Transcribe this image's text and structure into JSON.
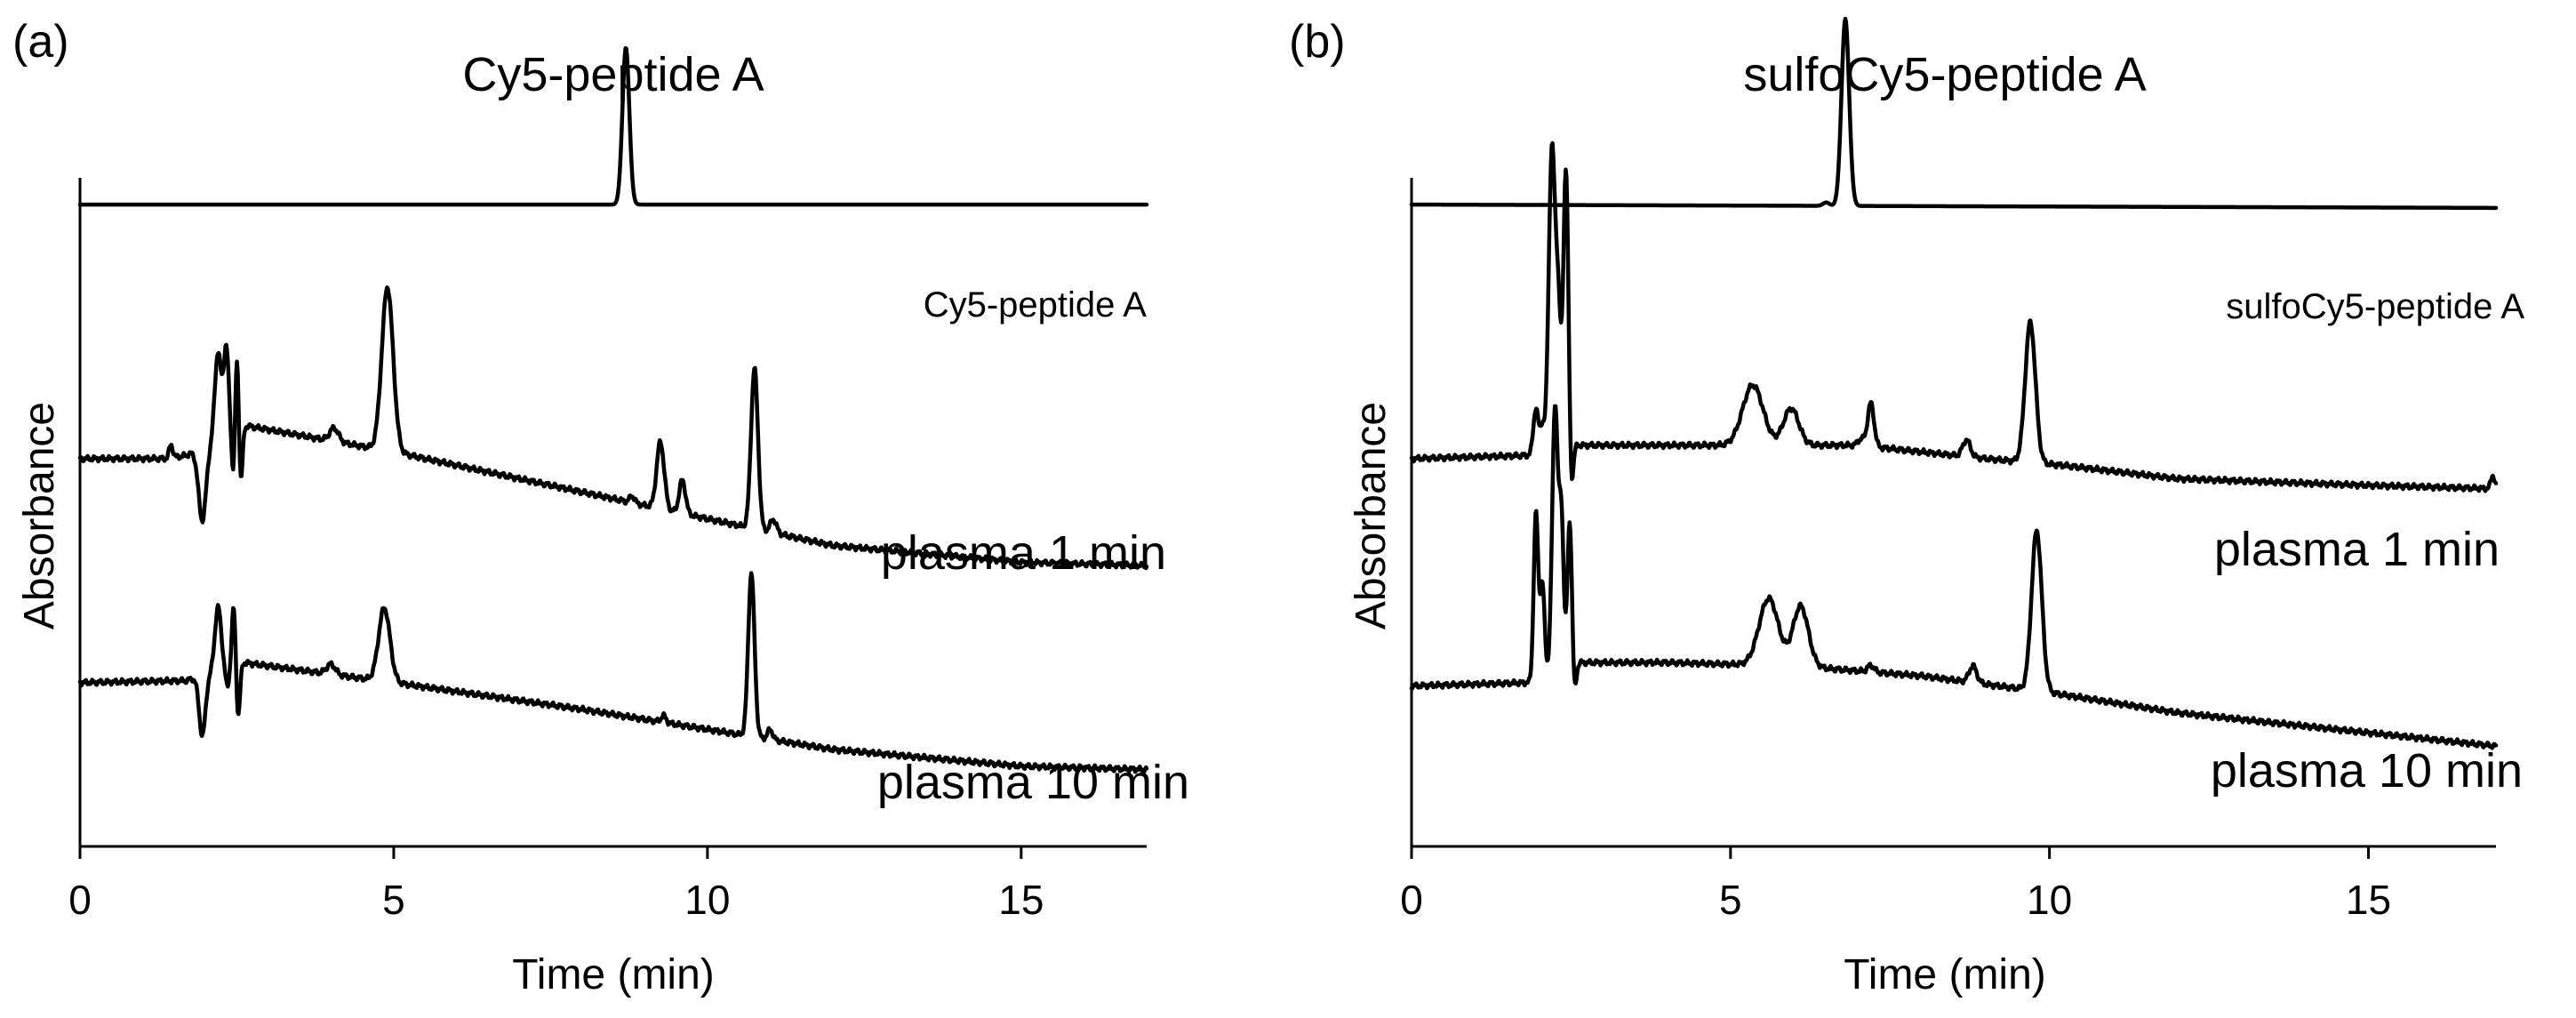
{
  "chart_data": [
    {
      "type": "line",
      "panel_label": "(a)",
      "title": "Cy5-peptide A",
      "xlabel": "Time (min)",
      "ylabel": "Absorbance",
      "xlim": [
        0,
        17
      ],
      "xticks": [
        0,
        5,
        10,
        15
      ],
      "series": [
        {
          "name": "Cy5-peptide A",
          "baseline": [
            [
              0,
              0.96
            ],
            [
              17,
              0.96
            ]
          ],
          "peaks": [
            [
              8.7,
              0.235,
              0.055
            ]
          ]
        },
        {
          "name": "plasma 1 min",
          "baseline": [
            [
              0,
              0.58
            ],
            [
              1.4,
              0.58
            ],
            [
              1.7,
              0.585
            ],
            [
              2.6,
              0.63
            ],
            [
              5,
              0.59
            ],
            [
              8,
              0.53
            ],
            [
              10,
              0.49
            ],
            [
              12,
              0.45
            ],
            [
              15,
              0.425
            ],
            [
              17,
              0.42
            ]
          ],
          "peaks": [
            [
              1.45,
              0.02,
              0.03
            ],
            [
              1.95,
              -0.11,
              0.06
            ],
            [
              2.2,
              0.13,
              0.05
            ],
            [
              2.33,
              0.13,
              0.04
            ],
            [
              2.45,
              -0.08,
              0.03
            ],
            [
              2.5,
              0.13,
              0.03
            ],
            [
              2.56,
              -0.09,
              0.03
            ],
            [
              4.05,
              0.02,
              0.07
            ],
            [
              4.9,
              0.245,
              0.09
            ],
            [
              8.8,
              0.01,
              0.04
            ],
            [
              9.25,
              0.1,
              0.06
            ],
            [
              9.6,
              0.05,
              0.05
            ],
            [
              10.75,
              0.24,
              0.055
            ],
            [
              11.05,
              0.02,
              0.05
            ]
          ]
        },
        {
          "name": "plasma 10 min",
          "baseline": [
            [
              0,
              0.245
            ],
            [
              1.7,
              0.248
            ],
            [
              2.6,
              0.275
            ],
            [
              5,
              0.245
            ],
            [
              8,
              0.205
            ],
            [
              10,
              0.175
            ],
            [
              12,
              0.145
            ],
            [
              15,
              0.12
            ],
            [
              17,
              0.115
            ]
          ],
          "peaks": [
            [
              1.95,
              -0.09,
              0.05
            ],
            [
              2.2,
              0.095,
              0.05
            ],
            [
              2.35,
              -0.03,
              0.03
            ],
            [
              2.45,
              0.09,
              0.03
            ],
            [
              2.52,
              -0.08,
              0.03
            ],
            [
              4.0,
              0.015,
              0.07
            ],
            [
              4.85,
              0.11,
              0.09
            ],
            [
              9.3,
              0.01,
              0.04
            ],
            [
              10.7,
              0.245,
              0.05
            ],
            [
              11.0,
              0.015,
              0.04
            ]
          ]
        }
      ]
    },
    {
      "type": "line",
      "panel_label": "(b)",
      "title": "sulfoCy5-peptide A",
      "xlabel": "Time (min)",
      "ylabel": "Absorbance",
      "xlim": [
        0,
        17
      ],
      "xticks": [
        0,
        5,
        10,
        15
      ],
      "series": [
        {
          "name": "sulfoCy5-peptide A",
          "baseline": [
            [
              0,
              0.96
            ],
            [
              17,
              0.955
            ]
          ],
          "peaks": [
            [
              6.5,
              0.005,
              0.05
            ],
            [
              6.8,
              0.28,
              0.06
            ]
          ]
        },
        {
          "name": "plasma 1 min",
          "baseline": [
            [
              0,
              0.58
            ],
            [
              1.9,
              0.585
            ],
            [
              2.6,
              0.6
            ],
            [
              4,
              0.6
            ],
            [
              5.5,
              0.6
            ],
            [
              7,
              0.6
            ],
            [
              9,
              0.58
            ],
            [
              10.2,
              0.57
            ],
            [
              12,
              0.55
            ],
            [
              15,
              0.54
            ],
            [
              17,
              0.535
            ]
          ],
          "peaks": [
            [
              1.95,
              0.07,
              0.04
            ],
            [
              2.05,
              0.04,
              0.03
            ],
            [
              2.2,
              0.45,
              0.05
            ],
            [
              2.3,
              0.2,
              0.04
            ],
            [
              2.42,
              0.42,
              0.04
            ],
            [
              2.5,
              -0.08,
              0.03
            ],
            [
              5.35,
              0.09,
              0.16
            ],
            [
              5.95,
              0.055,
              0.12
            ],
            [
              7.05,
              0.01,
              0.05
            ],
            [
              7.2,
              0.065,
              0.05
            ],
            [
              8.7,
              0.025,
              0.06
            ],
            [
              9.7,
              0.21,
              0.08
            ],
            [
              16.95,
              0.02,
              0.03
            ]
          ]
        },
        {
          "name": "plasma 10 min",
          "baseline": [
            [
              0,
              0.24
            ],
            [
              1.85,
              0.245
            ],
            [
              2.6,
              0.275
            ],
            [
              4,
              0.275
            ],
            [
              6,
              0.27
            ],
            [
              8,
              0.255
            ],
            [
              10,
              0.23
            ],
            [
              12,
              0.2
            ],
            [
              15,
              0.17
            ],
            [
              17,
              0.15
            ]
          ],
          "peaks": [
            [
              1.95,
              0.25,
              0.035
            ],
            [
              2.05,
              0.14,
              0.035
            ],
            [
              2.25,
              0.4,
              0.045
            ],
            [
              2.35,
              0.22,
              0.035
            ],
            [
              2.48,
              0.22,
              0.035
            ],
            [
              2.55,
              -0.05,
              0.03
            ],
            [
              5.6,
              0.1,
              0.15
            ],
            [
              6.1,
              0.09,
              0.12
            ],
            [
              7.2,
              0.01,
              0.05
            ],
            [
              8.8,
              0.025,
              0.06
            ],
            [
              9.8,
              0.24,
              0.08
            ]
          ]
        }
      ]
    }
  ]
}
